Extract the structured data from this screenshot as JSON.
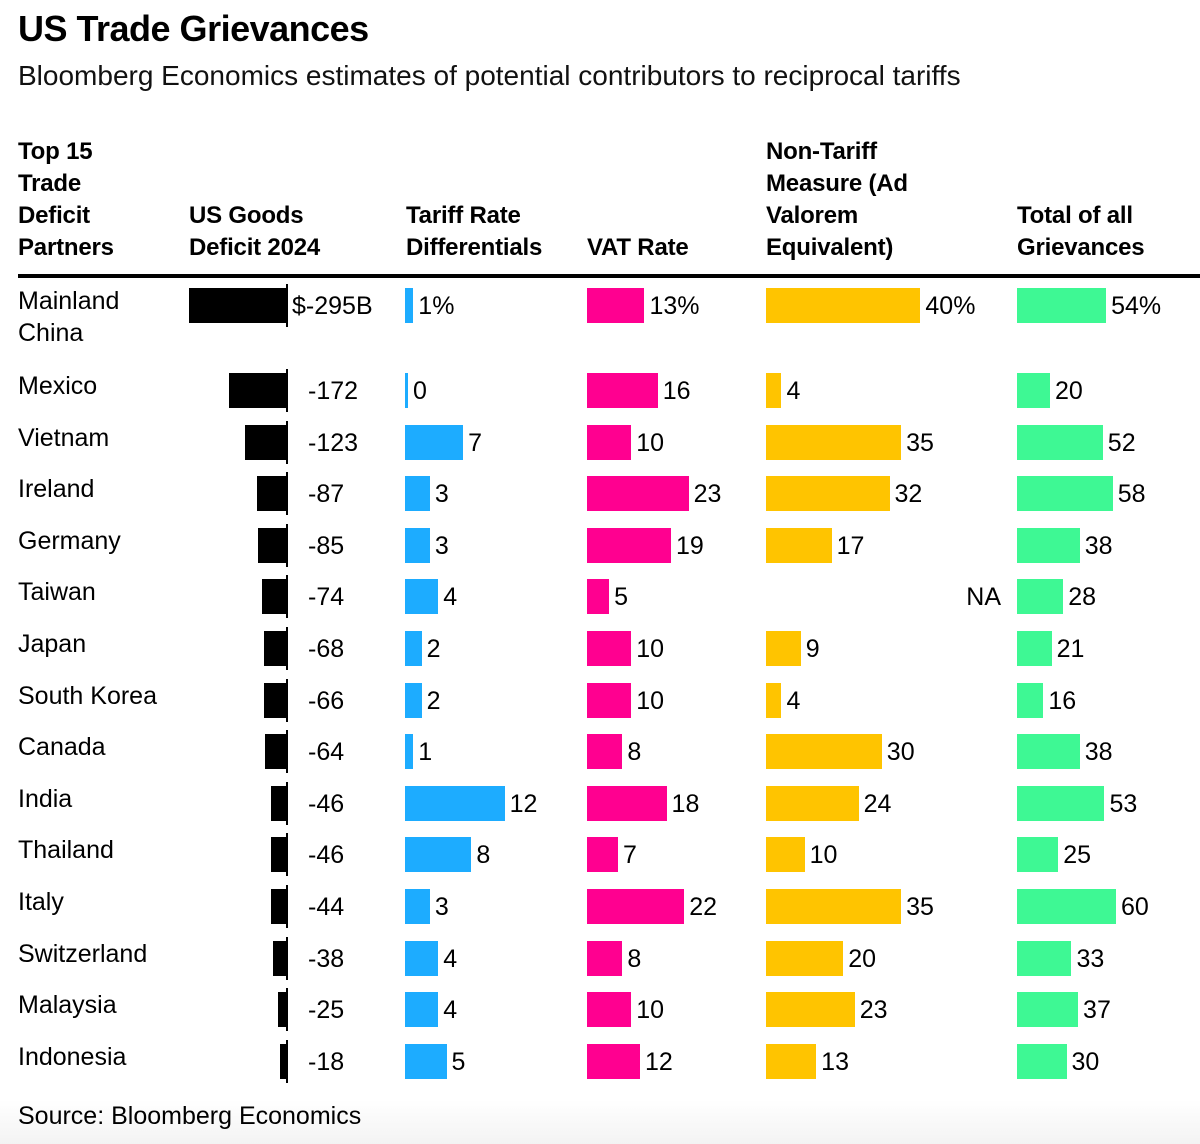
{
  "title": "US Trade Grievances",
  "subtitle": "Bloomberg Economics estimates of potential contributors to reciprocal tariffs",
  "source": "Source: Bloomberg Economics",
  "chart_data": {
    "type": "table",
    "title": "US Trade Grievances",
    "subtitle": "Bloomberg Economics estimates of potential contributors to reciprocal tariffs",
    "columns": [
      {
        "key": "partner",
        "header": "Top 15\nTrade\nDeficit\nPartners"
      },
      {
        "key": "deficit",
        "header": "US Goods\nDeficit 2024",
        "color": "#000000",
        "unit": "$B",
        "first_label_prefix": "$",
        "first_label_suffix": "B"
      },
      {
        "key": "tariff",
        "header": "Tariff Rate\nDifferentials",
        "color": "#1DACFF",
        "unit": "%",
        "first_label_suffix": "%"
      },
      {
        "key": "vat",
        "header": "VAT Rate",
        "color": "#FF0090",
        "unit": "%",
        "first_label_suffix": "%"
      },
      {
        "key": "ntm",
        "header": "Non-Tariff\nMeasure (Ad\nValorem\nEquivalent)",
        "color": "#FFC400",
        "unit": "%",
        "first_label_suffix": "%"
      },
      {
        "key": "total",
        "header": "Total of all\nGrievances",
        "color": "#3EF894",
        "unit": "%",
        "first_label_suffix": "%"
      }
    ],
    "na_label": "NA",
    "rows": [
      {
        "partner": "Mainland\nChina",
        "deficit": -295,
        "tariff": 1,
        "vat": 13,
        "ntm": 40,
        "total": 54
      },
      {
        "partner": "Mexico",
        "deficit": -172,
        "tariff": 0,
        "vat": 16,
        "ntm": 4,
        "total": 20
      },
      {
        "partner": "Vietnam",
        "deficit": -123,
        "tariff": 7,
        "vat": 10,
        "ntm": 35,
        "total": 52
      },
      {
        "partner": "Ireland",
        "deficit": -87,
        "tariff": 3,
        "vat": 23,
        "ntm": 32,
        "total": 58
      },
      {
        "partner": "Germany",
        "deficit": -85,
        "tariff": 3,
        "vat": 19,
        "ntm": 17,
        "total": 38
      },
      {
        "partner": "Taiwan",
        "deficit": -74,
        "tariff": 4,
        "vat": 5,
        "ntm": null,
        "total": 28
      },
      {
        "partner": "Japan",
        "deficit": -68,
        "tariff": 2,
        "vat": 10,
        "ntm": 9,
        "total": 21
      },
      {
        "partner": "South Korea",
        "deficit": -66,
        "tariff": 2,
        "vat": 10,
        "ntm": 4,
        "total": 16
      },
      {
        "partner": "Canada",
        "deficit": -64,
        "tariff": 1,
        "vat": 8,
        "ntm": 30,
        "total": 38
      },
      {
        "partner": "India",
        "deficit": -46,
        "tariff": 12,
        "vat": 18,
        "ntm": 24,
        "total": 53
      },
      {
        "partner": "Thailand",
        "deficit": -46,
        "tariff": 8,
        "vat": 7,
        "ntm": 10,
        "total": 25
      },
      {
        "partner": "Italy",
        "deficit": -44,
        "tariff": 3,
        "vat": 22,
        "ntm": 35,
        "total": 60
      },
      {
        "partner": "Switzerland",
        "deficit": -38,
        "tariff": 4,
        "vat": 8,
        "ntm": 20,
        "total": 33
      },
      {
        "partner": "Malaysia",
        "deficit": -25,
        "tariff": 4,
        "vat": 10,
        "ntm": 23,
        "total": 37
      },
      {
        "partner": "Indonesia",
        "deficit": -18,
        "tariff": 5,
        "vat": 12,
        "ntm": 13,
        "total": 30
      }
    ]
  }
}
